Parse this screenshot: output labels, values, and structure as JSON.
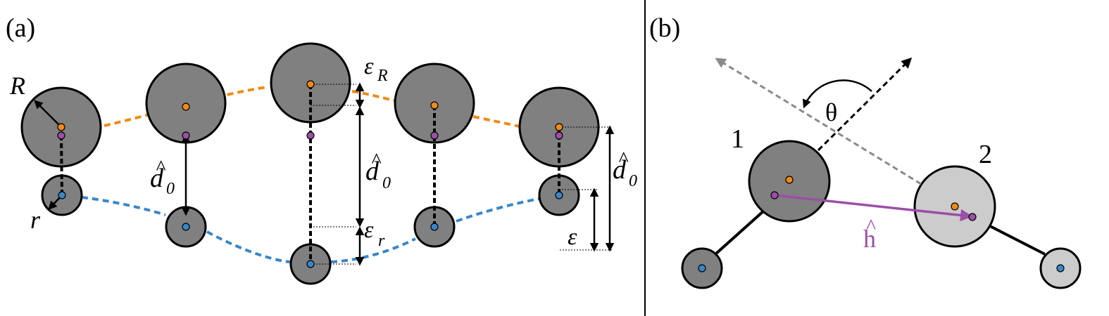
{
  "panel_a": {
    "label": "(a)",
    "R": "R",
    "r": "r",
    "d0": "d",
    "d0_sub": "0",
    "d0_hat": "^",
    "eps_R": "ε",
    "eps_R_sub": "R",
    "eps_r": "ε",
    "eps_r_sub": "r",
    "eps": "ε"
  },
  "panel_b": {
    "label": "(b)",
    "num1": "1",
    "num2": "2",
    "theta": "θ",
    "h": "h",
    "h_hat": "^"
  },
  "colors": {
    "large_dot": "#f08a18",
    "center_dot": "#9b4fa6",
    "small_dot": "#3a86c8",
    "orange_curve": "#f08a18",
    "blue_curve": "#3a86c8",
    "h_arrow": "#9b4fa6",
    "dir_arrow": "#8a8a8a",
    "disk_dark": "#808080",
    "disk_light": "#cccccc"
  }
}
